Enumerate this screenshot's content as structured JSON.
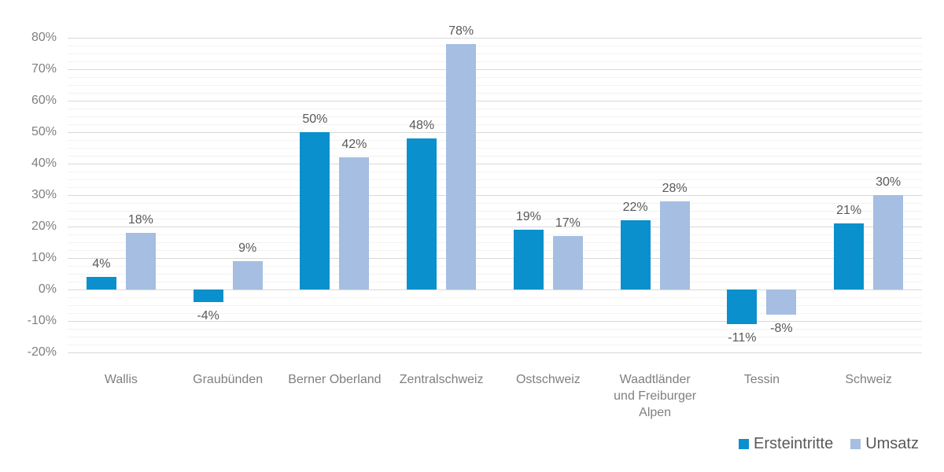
{
  "chart_data": {
    "type": "bar",
    "title": "",
    "xlabel": "",
    "ylabel": "",
    "value_suffix": "%",
    "categories": [
      "Wallis",
      "Graubünden",
      "Berner Oberland",
      "Zentralschweiz",
      "Ostschweiz",
      "Waadtländer\nund Freiburger\nAlpen",
      "Tessin",
      "Schweiz"
    ],
    "series": [
      {
        "name": "Ersteintritte",
        "color": "#0990cd",
        "values": [
          4,
          -4,
          50,
          48,
          19,
          22,
          -11,
          21
        ]
      },
      {
        "name": "Umsatz",
        "color": "#a5bee2",
        "values": [
          18,
          9,
          42,
          78,
          17,
          28,
          -8,
          30
        ]
      }
    ],
    "data_labels": [
      [
        "4%",
        "-4%",
        "50%",
        "48%",
        "19%",
        "22%",
        "-11%",
        "21%"
      ],
      [
        "18%",
        "9%",
        "42%",
        "78%",
        "17%",
        "28%",
        "-8%",
        "30%"
      ]
    ],
    "ylim": [
      -20,
      80
    ],
    "yticks": [
      {
        "value": 80,
        "label": "80%"
      },
      {
        "value": 70,
        "label": "70%"
      },
      {
        "value": 60,
        "label": "60%"
      },
      {
        "value": 50,
        "label": "50%"
      },
      {
        "value": 40,
        "label": "40%"
      },
      {
        "value": 30,
        "label": "30%"
      },
      {
        "value": 20,
        "label": "20%"
      },
      {
        "value": 10,
        "label": "10%"
      },
      {
        "value": 0,
        "label": "0%"
      },
      {
        "value": -10,
        "label": "-10%"
      },
      {
        "value": -20,
        "label": "-20%"
      }
    ],
    "ytick_major_step": 10,
    "ytick_minor_step": 2.5,
    "grid": "horizontal, major and minor lines",
    "legend_position": "bottom-right",
    "colors": {
      "major_gridline": "#d9d9d9",
      "minor_gridline": "#f2f2f2",
      "axis_text": "#7f7f7f",
      "data_label_text": "#595959",
      "legend_text": "#595959",
      "background": "#ffffff"
    }
  }
}
